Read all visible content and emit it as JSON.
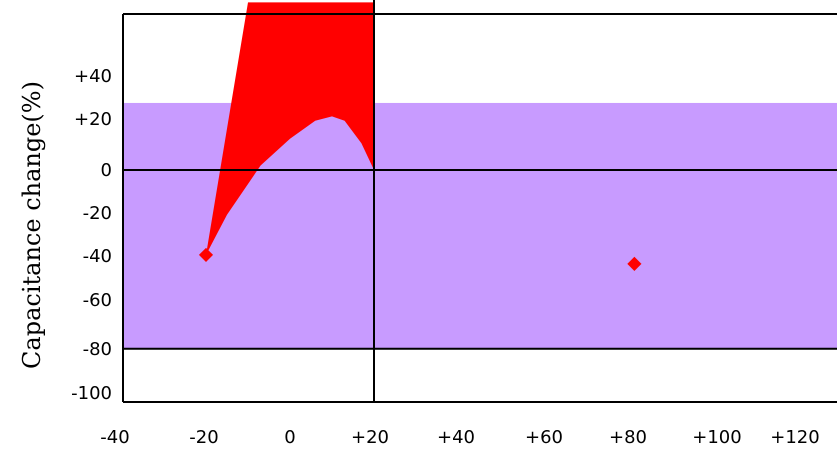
{
  "chart_data": {
    "type": "area",
    "title": "",
    "xlabel": "",
    "ylabel": "Capacitance change(%)",
    "x_ticks": [
      "-40",
      "-20",
      "0",
      "+20",
      "+40",
      "+60",
      "+80",
      "+100",
      "+120"
    ],
    "y_ticks": [
      "+40",
      "+20",
      "0",
      "-20",
      "-40",
      "-60",
      "-80",
      "-100"
    ],
    "xlim": [
      -40,
      125
    ],
    "ylim": [
      -102,
      70
    ],
    "band": {
      "y_range": [
        -80,
        30
      ],
      "color": "#c89bff"
    },
    "curve": {
      "color": "#ff0000",
      "top_edge": [
        [
          -20,
          -38
        ],
        [
          -10,
          75
        ],
        [
          20,
          75
        ],
        [
          20,
          0
        ]
      ],
      "bottom_edge": [
        [
          20,
          0
        ],
        [
          17,
          12
        ],
        [
          13,
          22
        ],
        [
          10,
          24
        ],
        [
          6,
          22
        ],
        [
          0,
          14
        ],
        [
          -7,
          2
        ],
        [
          -15,
          -20
        ],
        [
          -20,
          -38
        ]
      ]
    },
    "points": [
      {
        "x": -20,
        "y": -38,
        "color": "#ff0000"
      },
      {
        "x": 82,
        "y": -42,
        "color": "#ff0000"
      }
    ],
    "gridlines_y": [
      0,
      -80
    ],
    "vertical_line_x": 20
  }
}
